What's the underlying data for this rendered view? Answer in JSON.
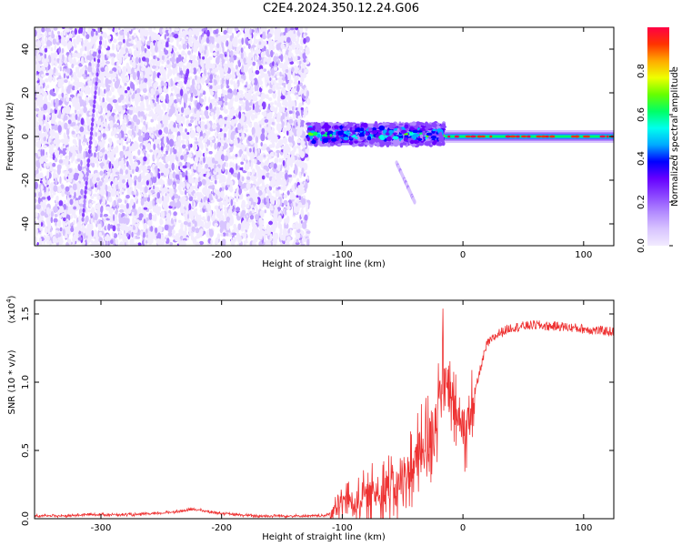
{
  "title": "C2E4.2024.350.12.24.G06",
  "colors": {
    "snr_line": "#ee3333",
    "frame": "#000000",
    "colormap": [
      "#f2ebff",
      "#d8c4ff",
      "#b28aff",
      "#8a44ff",
      "#6600ff",
      "#0000ff",
      "#00aaff",
      "#00ffee",
      "#00ff66",
      "#66ff00",
      "#eeff00",
      "#ffaa00",
      "#ff3300",
      "#ff0044"
    ]
  },
  "chart_data": [
    {
      "type": "heatmap",
      "title": "",
      "xlabel": "Height of straight line (km)",
      "ylabel": "Frequency (Hz)",
      "xlim": [
        -355,
        125
      ],
      "ylim": [
        -50,
        50
      ],
      "xticks": [
        "-300",
        "-200",
        "-100",
        "0",
        "100"
      ],
      "xtick_values": [
        -300,
        -200,
        -100,
        0,
        100
      ],
      "yticks": [
        "40",
        "20",
        "0",
        "-20",
        "-40"
      ],
      "ytick_values": [
        40,
        20,
        0,
        -20,
        -40
      ],
      "colorbar": {
        "label": "Normalized spectral amplitude",
        "range": [
          0,
          1
        ],
        "ticks": [
          "0.0",
          "0.2",
          "0.4",
          "0.6",
          "0.8"
        ],
        "tick_values": [
          0.0,
          0.2,
          0.4,
          0.6,
          0.8
        ]
      },
      "regions": [
        {
          "x_range": [
            -355,
            -128
          ],
          "y_range": [
            -50,
            50
          ],
          "amplitude": 0.08
        },
        {
          "x_range": [
            -128,
            -15
          ],
          "y_range": [
            -4,
            6
          ],
          "amplitude": 0.4
        },
        {
          "x_range": [
            -15,
            125
          ],
          "y_range": [
            -1.5,
            1.5
          ],
          "amplitude": 0.6
        }
      ],
      "features": [
        {
          "x_start": -315,
          "y_start": -38,
          "x_end": -300,
          "y_end": 45,
          "amplitude": 0.22
        },
        {
          "x_start": -230,
          "y_start": 25,
          "x_end": -228,
          "y_end": 30,
          "amplitude": 0.25
        },
        {
          "x_start": -55,
          "y_start": -12,
          "x_end": -40,
          "y_end": -30,
          "amplitude": 0.12
        }
      ]
    },
    {
      "type": "line",
      "title": "",
      "xlabel": "Height of straight line (km)",
      "ylabel": "SNR (10 * v/v)",
      "y_multiplier": "(x10^4)",
      "xlim": [
        -355,
        125
      ],
      "ylim": [
        0,
        1.6
      ],
      "xticks": [
        "-300",
        "-200",
        "-100",
        "0",
        "100"
      ],
      "xtick_values": [
        -300,
        -200,
        -100,
        0,
        100
      ],
      "yticks": [
        "0.0",
        "0.5",
        "1.0",
        "1.5"
      ],
      "ytick_values": [
        0.0,
        0.5,
        1.0,
        1.5
      ],
      "series": [
        {
          "x": [
            -355,
            -330,
            -310,
            -290,
            -270,
            -250,
            -230,
            -222,
            -210,
            -190,
            -170,
            -150,
            -130,
            -115,
            -105,
            -98,
            -90,
            -80,
            -70,
            -60,
            -50,
            -45,
            -40,
            -35,
            -30,
            -25,
            -20,
            -17,
            -15,
            -10,
            -5,
            0,
            5,
            10,
            15,
            20,
            30,
            40,
            50,
            60,
            70,
            80,
            90,
            100,
            110,
            125
          ],
          "values": [
            0.02,
            0.02,
            0.03,
            0.03,
            0.03,
            0.04,
            0.06,
            0.07,
            0.05,
            0.03,
            0.02,
            0.02,
            0.02,
            0.02,
            0.06,
            0.15,
            0.12,
            0.17,
            0.2,
            0.22,
            0.26,
            0.35,
            0.4,
            0.45,
            0.55,
            0.65,
            0.85,
            1.15,
            1.0,
            0.85,
            0.75,
            0.62,
            0.7,
            0.92,
            1.12,
            1.28,
            1.36,
            1.4,
            1.41,
            1.42,
            1.41,
            1.41,
            1.4,
            1.39,
            1.38,
            1.37
          ]
        }
      ]
    }
  ]
}
